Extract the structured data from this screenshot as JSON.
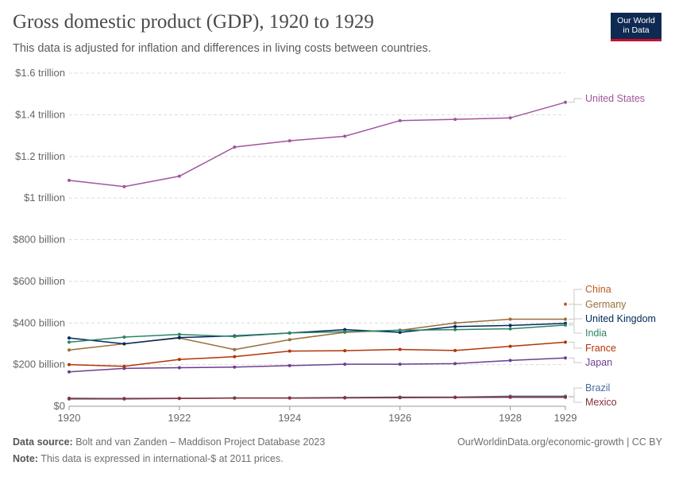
{
  "header": {
    "title": "Gross domestic product (GDP), 1920 to 1929",
    "subtitle": "This data is adjusted for inflation and differences in living costs between countries.",
    "logo_line1": "Our World",
    "logo_line2": "in Data"
  },
  "footer": {
    "source_label": "Data source:",
    "source_text": "Bolt and van Zanden – Maddison Project Database 2023",
    "note_label": "Note:",
    "note_text": "This data is expressed in international-$ at 2011 prices.",
    "url": "OurWorldinData.org/economic-growth | CC BY"
  },
  "chart_data": {
    "type": "line",
    "title": "Gross domestic product (GDP), 1920 to 1929",
    "xlabel": "",
    "ylabel": "",
    "xlim": [
      1920,
      1929
    ],
    "ylim": [
      0,
      1600
    ],
    "x_ticks": [
      1920,
      1922,
      1924,
      1926,
      1928,
      1929
    ],
    "y_ticks": [
      {
        "value": 0,
        "label": "$0"
      },
      {
        "value": 200,
        "label": "$200 billion"
      },
      {
        "value": 400,
        "label": "$400 billion"
      },
      {
        "value": 600,
        "label": "$600 billion"
      },
      {
        "value": 800,
        "label": "$800 billion"
      },
      {
        "value": 1000,
        "label": "$1 trillion"
      },
      {
        "value": 1200,
        "label": "$1.2 trillion"
      },
      {
        "value": 1400,
        "label": "$1.4 trillion"
      },
      {
        "value": 1600,
        "label": "$1.6 trillion"
      }
    ],
    "grid": true,
    "legend": "right, labels at line ends",
    "series": [
      {
        "name": "United States",
        "color": "#a2559c",
        "x": [
          1920,
          1921,
          1922,
          1923,
          1924,
          1925,
          1926,
          1927,
          1928,
          1929
        ],
        "values": [
          1085,
          1055,
          1105,
          1245,
          1275,
          1297,
          1372,
          1378,
          1385,
          1460
        ]
      },
      {
        "name": "China",
        "color": "#c15b1f",
        "x": [
          1929
        ],
        "values": [
          490
        ]
      },
      {
        "name": "Germany",
        "color": "#996d39",
        "x": [
          1920,
          1921,
          1922,
          1923,
          1924,
          1925,
          1926,
          1927,
          1928,
          1929
        ],
        "values": [
          270,
          300,
          328,
          272,
          320,
          355,
          365,
          400,
          418,
          418
        ]
      },
      {
        "name": "United Kingdom",
        "color": "#00295b",
        "x": [
          1920,
          1921,
          1922,
          1923,
          1924,
          1925,
          1926,
          1927,
          1928,
          1929
        ],
        "values": [
          328,
          300,
          330,
          338,
          352,
          368,
          355,
          383,
          388,
          398
        ]
      },
      {
        "name": "India",
        "color": "#2c8465",
        "x": [
          1920,
          1921,
          1922,
          1923,
          1924,
          1925,
          1926,
          1927,
          1928,
          1929
        ],
        "values": [
          308,
          332,
          345,
          335,
          352,
          358,
          365,
          368,
          372,
          390
        ]
      },
      {
        "name": "France",
        "color": "#b13507",
        "x": [
          1920,
          1921,
          1922,
          1923,
          1924,
          1925,
          1926,
          1927,
          1928,
          1929
        ],
        "values": [
          200,
          192,
          225,
          238,
          265,
          267,
          273,
          268,
          288,
          308
        ]
      },
      {
        "name": "Japan",
        "color": "#6d3e91",
        "x": [
          1920,
          1921,
          1922,
          1923,
          1924,
          1925,
          1926,
          1927,
          1928,
          1929
        ],
        "values": [
          165,
          182,
          185,
          188,
          195,
          202,
          202,
          205,
          220,
          232
        ]
      },
      {
        "name": "Brazil",
        "color": "#4c6a9c",
        "x": [
          1920,
          1921,
          1922,
          1923,
          1924,
          1925,
          1926,
          1927,
          1928,
          1929
        ],
        "values": [
          35,
          35,
          37,
          40,
          40,
          42,
          44,
          44,
          48,
          48
        ]
      },
      {
        "name": "Mexico",
        "color": "#883039",
        "x": [
          1920,
          1921,
          1922,
          1923,
          1924,
          1925,
          1926,
          1927,
          1928,
          1929
        ],
        "values": [
          38,
          37,
          38,
          39,
          39,
          40,
          41,
          42,
          43,
          43
        ]
      }
    ]
  }
}
